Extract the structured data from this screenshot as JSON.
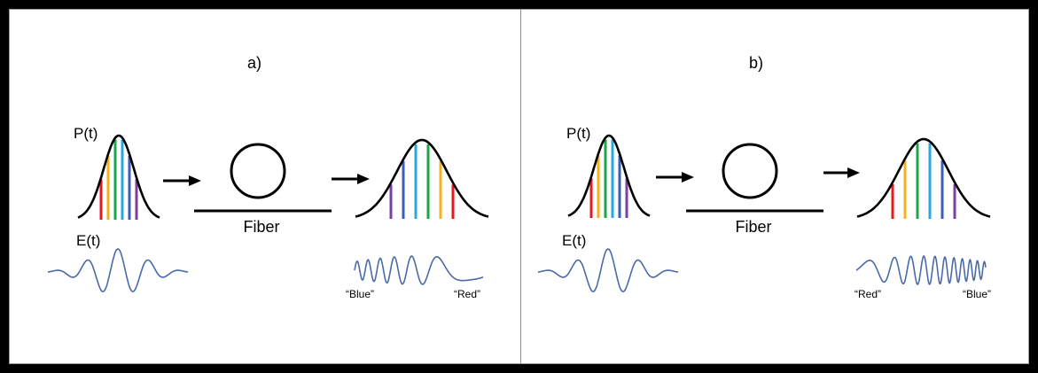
{
  "panels": [
    {
      "label": "a)",
      "pulse_label": "P(t)",
      "field_label": "E(t)",
      "fiber_label": "Fiber",
      "output_left_label": "“Blue”",
      "output_right_label": "“Red”",
      "input_colors": [
        "#e6191e",
        "#f5b21c",
        "#1aa64a",
        "#29a8e0",
        "#3a5fb4",
        "#7b3fa0"
      ],
      "output_colors": [
        "#7b3fa0",
        "#3a5fb4",
        "#29a8e0",
        "#1aa64a",
        "#f5b21c",
        "#e6191e"
      ]
    },
    {
      "label": "b)",
      "pulse_label": "P(t)",
      "field_label": "E(t)",
      "fiber_label": "Fiber",
      "output_left_label": "“Red”",
      "output_right_label": "“Blue”",
      "input_colors": [
        "#e6191e",
        "#f5b21c",
        "#1aa64a",
        "#29a8e0",
        "#3a5fb4",
        "#7b3fa0"
      ],
      "output_colors": [
        "#e6191e",
        "#f5b21c",
        "#1aa64a",
        "#29a8e0",
        "#3a5fb4",
        "#7b3fa0"
      ]
    }
  ],
  "colors": {
    "wave": "#4a6aa8",
    "outline": "#000000"
  }
}
